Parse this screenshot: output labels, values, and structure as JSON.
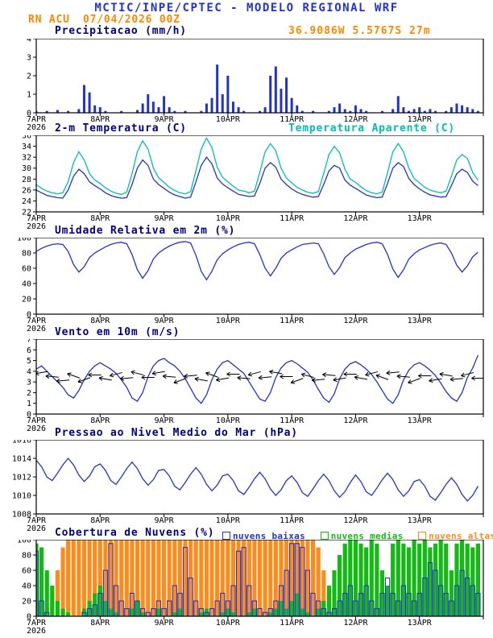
{
  "header": {
    "title": "MCTIC/INPE/CPTEC - MODELO REGIONAL WRF",
    "station": "RN ACU",
    "run": "07/04/2026 00Z",
    "location": "36.9086W 5.5767S 27m"
  },
  "colors": {
    "header_blue": "#2233cc",
    "accent_orange": "#ff8800",
    "panel_title_navy": "#000080",
    "line_blue": "#2233cc",
    "apparent_cyan": "#00bfae",
    "cloud_green": "#11bb11",
    "cloud_orange": "#ff8c1a"
  },
  "x_axis": {
    "tick_labels": [
      "7APR",
      "8APR",
      "9APR",
      "10APR",
      "11APR",
      "12APR",
      "13APR"
    ],
    "year": "2026",
    "span_hours": 168,
    "step_hours": 2
  },
  "chart_data": [
    {
      "id": "precip",
      "type": "bar",
      "title": "Precipitacao (mm/h)",
      "ylim": [
        0,
        4
      ],
      "yticks": [
        0,
        1,
        2,
        3,
        4
      ],
      "series": [
        {
          "name": "precipitacao",
          "color": "#2233cc",
          "values": [
            0.1,
            0,
            0.1,
            0,
            0.15,
            0,
            0.1,
            0,
            0.2,
            1.5,
            1.1,
            0.4,
            0.3,
            0.1,
            0,
            0,
            0.1,
            0,
            0,
            0.15,
            0.5,
            1.0,
            0.6,
            0.3,
            0.9,
            0.3,
            0.1,
            0,
            0.1,
            0,
            0,
            0.1,
            0.5,
            0.8,
            2.6,
            1.0,
            2.0,
            0.6,
            0.3,
            0.1,
            0,
            0,
            0.1,
            0.3,
            2.0,
            2.5,
            1.3,
            1.9,
            0.8,
            0.4,
            0.1,
            0,
            0.1,
            0,
            0,
            0.1,
            0.3,
            0.5,
            0.2,
            0.1,
            0.4,
            0.2,
            0.1,
            0,
            0,
            0.1,
            0,
            0.2,
            0.9,
            0.3,
            0.1,
            0.2,
            0.3,
            0.1,
            0.2,
            0.1,
            0,
            0.1,
            0.3,
            0.5,
            0.4,
            0.3,
            0.2,
            0.1
          ]
        }
      ]
    },
    {
      "id": "temp2m",
      "type": "line",
      "title": "2-m Temperatura (C)",
      "title2": "Temperatura Aparente (C)",
      "ylim": [
        22,
        36
      ],
      "yticks": [
        22,
        24,
        26,
        28,
        30,
        32,
        34,
        36
      ],
      "series": [
        {
          "name": "2-m Temperatura (C)",
          "color": "#2233cc",
          "values": [
            26.0,
            25.5,
            25.0,
            24.8,
            24.6,
            24.5,
            26.0,
            28.5,
            29.8,
            29.0,
            27.5,
            26.8,
            26.2,
            25.5,
            25.0,
            24.7,
            24.5,
            24.6,
            27.0,
            30.0,
            31.5,
            30.5,
            28.0,
            27.0,
            26.3,
            25.6,
            25.1,
            24.8,
            24.5,
            24.7,
            27.5,
            30.5,
            32.0,
            30.8,
            28.2,
            27.1,
            26.4,
            25.8,
            25.2,
            25.0,
            24.8,
            24.9,
            27.2,
            30.0,
            31.0,
            30.2,
            28.0,
            27.0,
            26.2,
            25.6,
            25.2,
            24.9,
            24.7,
            24.8,
            27.0,
            29.5,
            30.5,
            30.0,
            27.8,
            26.9,
            26.3,
            25.7,
            25.1,
            24.8,
            24.6,
            24.7,
            27.2,
            30.0,
            31.0,
            30.3,
            28.1,
            27.0,
            26.2,
            25.6,
            25.1,
            24.9,
            24.7,
            24.8,
            26.8,
            29.0,
            29.8,
            29.2,
            27.6,
            26.8
          ]
        },
        {
          "name": "Temperatura Aparente (C)",
          "color": "#00bfae",
          "values": [
            27.0,
            26.3,
            25.8,
            25.5,
            25.3,
            25.5,
            27.5,
            31.0,
            33.0,
            31.5,
            29.0,
            27.8,
            27.2,
            26.4,
            25.8,
            25.4,
            25.2,
            25.6,
            29.0,
            33.0,
            35.0,
            33.5,
            30.0,
            28.2,
            27.4,
            26.5,
            25.9,
            25.5,
            25.3,
            25.7,
            29.5,
            33.5,
            35.5,
            33.8,
            30.2,
            28.3,
            27.5,
            26.7,
            26.0,
            25.8,
            25.5,
            25.8,
            29.2,
            33.0,
            34.5,
            33.2,
            30.0,
            28.2,
            27.3,
            26.5,
            26.0,
            25.6,
            25.4,
            25.7,
            29.0,
            32.5,
            34.0,
            32.8,
            29.8,
            28.0,
            27.4,
            26.6,
            25.9,
            25.5,
            25.3,
            25.6,
            29.2,
            33.0,
            34.5,
            33.0,
            30.0,
            28.1,
            27.3,
            26.5,
            26.0,
            25.7,
            25.5,
            25.8,
            28.5,
            31.5,
            32.5,
            31.8,
            29.2,
            27.8
          ]
        }
      ]
    },
    {
      "id": "humidity",
      "type": "line",
      "title": "Umidade Relativa em 2m (%)",
      "ylim": [
        0,
        100
      ],
      "yticks": [
        0,
        20,
        40,
        60,
        80,
        100
      ],
      "series": [
        {
          "name": "umidade relativa",
          "color": "#2233cc",
          "values": [
            82,
            86,
            89,
            91,
            92,
            91,
            82,
            65,
            55,
            62,
            74,
            80,
            84,
            88,
            91,
            93,
            94,
            92,
            78,
            58,
            47,
            57,
            72,
            80,
            85,
            89,
            92,
            94,
            95,
            93,
            77,
            56,
            45,
            56,
            71,
            79,
            84,
            88,
            91,
            93,
            94,
            92,
            78,
            60,
            50,
            60,
            73,
            80,
            84,
            88,
            91,
            92,
            93,
            92,
            79,
            62,
            52,
            61,
            74,
            80,
            85,
            88,
            91,
            93,
            94,
            92,
            78,
            59,
            48,
            58,
            72,
            79,
            84,
            87,
            90,
            92,
            93,
            91,
            80,
            64,
            55,
            63,
            75,
            81
          ]
        }
      ]
    },
    {
      "id": "wind",
      "type": "line",
      "title": "Vento em 10m (m/s)",
      "ylim": [
        0,
        7
      ],
      "yticks": [
        0,
        1,
        2,
        3,
        4,
        5,
        6,
        7
      ],
      "series": [
        {
          "name": "vento 10m",
          "color": "#2233cc",
          "values": [
            4.2,
            4.5,
            4.0,
            3.5,
            3.0,
            2.5,
            1.8,
            1.5,
            2.2,
            3.2,
            4.0,
            4.5,
            4.8,
            4.5,
            4.2,
            3.8,
            3.2,
            2.5,
            1.5,
            1.2,
            2.0,
            3.5,
            4.5,
            5.0,
            5.2,
            4.8,
            4.5,
            4.0,
            3.3,
            2.4,
            1.5,
            1.0,
            1.8,
            3.2,
            4.2,
            4.8,
            5.0,
            4.6,
            4.2,
            3.8,
            3.0,
            2.2,
            1.4,
            1.2,
            2.0,
            3.4,
            4.3,
            4.8,
            5.0,
            4.7,
            4.3,
            3.9,
            3.2,
            2.3,
            1.5,
            1.1,
            1.9,
            3.3,
            4.2,
            4.7,
            4.9,
            4.6,
            4.2,
            3.7,
            3.0,
            2.2,
            1.4,
            1.0,
            1.8,
            3.2,
            4.1,
            4.6,
            4.8,
            4.5,
            4.1,
            3.6,
            2.9,
            2.1,
            1.5,
            1.2,
            2.0,
            3.4,
            4.3,
            5.5
          ]
        }
      ],
      "barbs": {
        "y": 3.5,
        "angles": [
          190,
          175,
          185,
          160,
          200,
          180,
          170,
          195,
          185,
          165,
          180,
          190,
          175,
          200,
          185,
          170,
          160,
          190,
          180,
          175,
          195,
          185,
          170,
          180,
          200,
          165,
          185,
          175,
          190,
          180,
          170,
          195,
          160,
          185,
          175,
          200,
          180,
          190,
          170,
          185,
          195,
          180
        ]
      }
    },
    {
      "id": "pressure",
      "type": "line",
      "title": "Pressao ao Nivel Medio do Mar (hPa)",
      "ylim": [
        1008,
        1016
      ],
      "yticks": [
        1008,
        1010,
        1012,
        1014,
        1016
      ],
      "series": [
        {
          "name": "pressao nivel do mar",
          "color": "#2233cc",
          "values": [
            1013.8,
            1013.1,
            1012.0,
            1011.6,
            1012.4,
            1013.3,
            1014.0,
            1013.3,
            1012.2,
            1011.5,
            1012.1,
            1013.1,
            1013.4,
            1012.7,
            1011.6,
            1011.2,
            1012.0,
            1012.9,
            1013.6,
            1012.9,
            1011.8,
            1011.1,
            1011.7,
            1012.7,
            1012.8,
            1012.1,
            1011.0,
            1010.6,
            1011.4,
            1012.3,
            1013.0,
            1012.3,
            1011.2,
            1010.5,
            1011.1,
            1012.1,
            1012.3,
            1011.6,
            1010.5,
            1010.1,
            1010.9,
            1011.8,
            1012.5,
            1011.8,
            1010.7,
            1010.0,
            1010.6,
            1011.6,
            1012.1,
            1011.4,
            1010.3,
            1009.9,
            1010.7,
            1011.6,
            1012.3,
            1011.6,
            1010.5,
            1009.8,
            1010.4,
            1011.4,
            1012.2,
            1011.5,
            1010.4,
            1010.0,
            1010.8,
            1011.7,
            1012.4,
            1011.7,
            1010.6,
            1009.9,
            1010.5,
            1011.5,
            1011.7,
            1011.0,
            1009.9,
            1009.5,
            1010.3,
            1011.2,
            1011.9,
            1011.2,
            1010.1,
            1009.4,
            1010.0,
            1011.0
          ]
        }
      ]
    },
    {
      "id": "clouds",
      "type": "bar",
      "title": "Cobertura de Nuvens (%)",
      "ylim": [
        0,
        100
      ],
      "yticks": [
        0,
        20,
        40,
        60,
        80,
        100
      ],
      "series": [
        {
          "name": "nuvens baixas",
          "color": "#2233cc",
          "fill": "none",
          "values": [
            85,
            20,
            5,
            0,
            0,
            0,
            0,
            0,
            0,
            5,
            10,
            15,
            30,
            60,
            95,
            40,
            20,
            10,
            30,
            20,
            10,
            5,
            10,
            20,
            10,
            20,
            40,
            30,
            90,
            50,
            20,
            10,
            5,
            10,
            20,
            30,
            20,
            40,
            85,
            90,
            40,
            20,
            10,
            5,
            10,
            20,
            40,
            60,
            95,
            95,
            90,
            60,
            30,
            20,
            10,
            5,
            10,
            20,
            30,
            40,
            20,
            30,
            40,
            20,
            10,
            30,
            50,
            30,
            20,
            40,
            30,
            20,
            30,
            50,
            70,
            60,
            40,
            30,
            20,
            40,
            60,
            50,
            40,
            30
          ]
        },
        {
          "name": "nuvens medias",
          "color": "#11bb11",
          "values": [
            95,
            90,
            60,
            40,
            20,
            10,
            5,
            0,
            0,
            10,
            20,
            30,
            40,
            20,
            10,
            5,
            0,
            0,
            10,
            20,
            5,
            0,
            0,
            10,
            0,
            0,
            5,
            10,
            0,
            0,
            0,
            5,
            10,
            0,
            0,
            5,
            10,
            5,
            0,
            0,
            5,
            10,
            0,
            0,
            5,
            10,
            20,
            10,
            20,
            30,
            10,
            5,
            0,
            10,
            20,
            40,
            60,
            80,
            95,
            100,
            100,
            95,
            90,
            100,
            95,
            60,
            40,
            95,
            100,
            95,
            90,
            100,
            95,
            100,
            90,
            95,
            100,
            95,
            60,
            95,
            100,
            95,
            90,
            95
          ]
        },
        {
          "name": "nuvens altas",
          "color": "#ff8c1a",
          "values": [
            0,
            0,
            10,
            30,
            60,
            90,
            100,
            100,
            100,
            100,
            100,
            100,
            100,
            100,
            100,
            100,
            100,
            100,
            100,
            100,
            100,
            100,
            100,
            100,
            100,
            100,
            100,
            100,
            100,
            100,
            100,
            100,
            100,
            100,
            100,
            100,
            100,
            100,
            100,
            100,
            100,
            100,
            100,
            100,
            100,
            100,
            100,
            100,
            100,
            100,
            100,
            100,
            100,
            90,
            60,
            30,
            10,
            0,
            0,
            0,
            0,
            0,
            0,
            0,
            0,
            0,
            0,
            0,
            0,
            0,
            0,
            0,
            0,
            0,
            0,
            0,
            0,
            0,
            0,
            0,
            0,
            0,
            0,
            0
          ]
        }
      ]
    }
  ]
}
